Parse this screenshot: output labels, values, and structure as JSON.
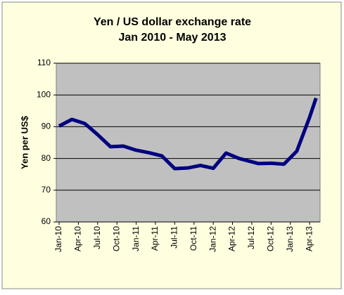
{
  "chart_data": {
    "type": "line",
    "title": [
      "Yen / US dollar exchange rate",
      "Jan 2010 - May 2013"
    ],
    "ylabel": "Yen per US$",
    "x": [
      0,
      2,
      4,
      6,
      8,
      10,
      12,
      14,
      16,
      18,
      20,
      22,
      24,
      26,
      28,
      31,
      33,
      35,
      37,
      39,
      40
    ],
    "series": [
      {
        "name": "Yen per US$",
        "color": "#000080",
        "values": [
          90.2,
          92.3,
          91,
          87.5,
          83.7,
          83.9,
          82.6,
          81.8,
          80.8,
          76.8,
          77,
          77.8,
          76.9,
          81.7,
          80,
          78.4,
          78.5,
          78.2,
          82.3,
          93,
          99
        ]
      }
    ],
    "xlim": [
      0,
      40.3
    ],
    "xticks": [
      {
        "value": 0,
        "label": "Jan-10"
      },
      {
        "value": 3,
        "label": "Apr-10"
      },
      {
        "value": 6,
        "label": "Jul-10"
      },
      {
        "value": 9,
        "label": "Oct-10"
      },
      {
        "value": 12,
        "label": "Jan-11"
      },
      {
        "value": 15,
        "label": "Apr-11"
      },
      {
        "value": 18,
        "label": "Jul-11"
      },
      {
        "value": 21,
        "label": "Oct-11"
      },
      {
        "value": 24,
        "label": "Jan-12"
      },
      {
        "value": 27,
        "label": "Apr-12"
      },
      {
        "value": 30,
        "label": "Jul-12"
      },
      {
        "value": 33,
        "label": "Oct-12"
      },
      {
        "value": 36,
        "label": "Jan-13"
      },
      {
        "value": 39,
        "label": "Apr-13"
      }
    ],
    "ylim": [
      60,
      110
    ],
    "yticks": [
      60,
      70,
      80,
      90,
      100,
      110
    ],
    "grid": true
  }
}
